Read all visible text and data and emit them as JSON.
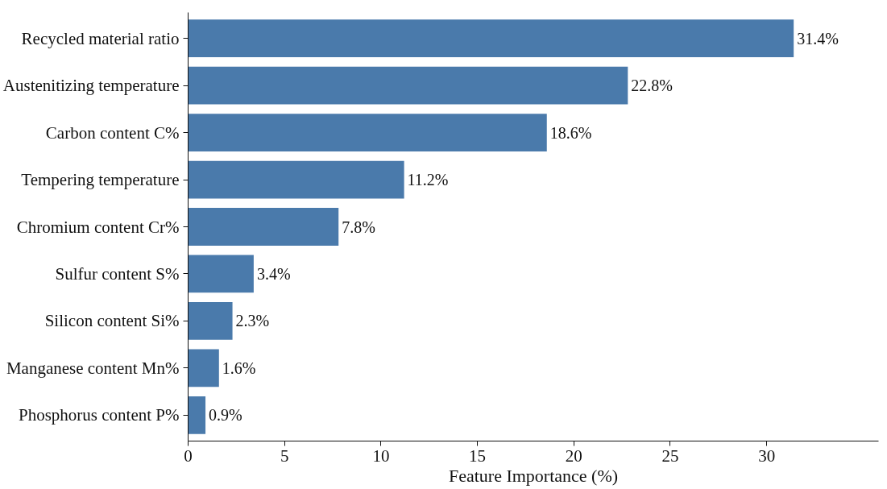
{
  "chart_data": {
    "type": "bar",
    "orientation": "horizontal",
    "xlabel": "Feature Importance (%)",
    "categories": [
      "Recycled material ratio",
      "Austenitizing temperature",
      "Carbon content C%",
      "Tempering temperature",
      "Chromium content Cr%",
      "Sulfur content S%",
      "Silicon content Si%",
      "Manganese content Mn%",
      "Phosphorus content P%"
    ],
    "values": [
      31.4,
      22.8,
      18.6,
      11.2,
      7.8,
      3.4,
      2.3,
      1.6,
      0.9
    ],
    "value_labels": [
      "31.4%",
      "22.8%",
      "18.6%",
      "11.2%",
      "7.8%",
      "3.4%",
      "2.3%",
      "1.6%",
      "0.9%"
    ],
    "color": "#4a7aab",
    "xlim": [
      0,
      35.8
    ],
    "xticks": [
      0,
      5,
      10,
      15,
      20,
      25,
      30
    ],
    "grid": false
  }
}
